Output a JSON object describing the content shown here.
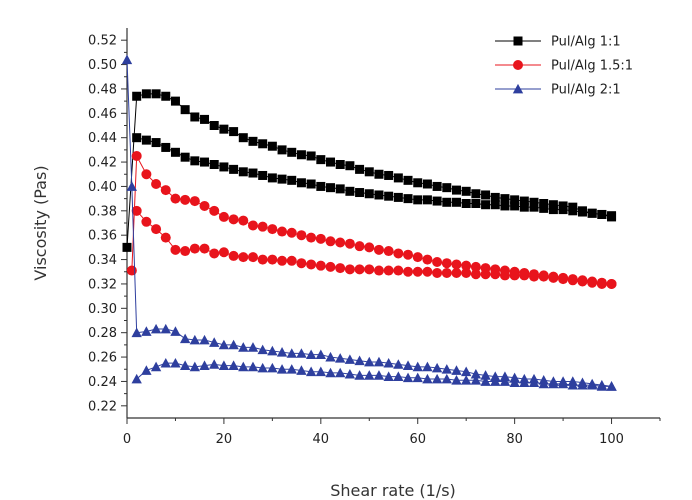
{
  "chart_data": {
    "type": "scatter",
    "title": "",
    "xlabel": "Shear rate (1/s)",
    "ylabel": "Viscosity (Pas)",
    "xlim": [
      0,
      110
    ],
    "ylim": [
      0.21,
      0.53
    ],
    "xticks": [
      0,
      20,
      40,
      60,
      80,
      100
    ],
    "yticks": [
      0.22,
      0.24,
      0.26,
      0.28,
      0.3,
      0.32,
      0.34,
      0.36,
      0.38,
      0.4,
      0.42,
      0.44,
      0.46,
      0.48,
      0.5,
      0.52
    ],
    "grid": false,
    "legend_position": "top-right",
    "series": [
      {
        "name": "Pul/Alg 1:1",
        "color": "#000000",
        "marker": "square",
        "up": {
          "x": [
            0,
            2,
            4,
            6,
            8,
            10,
            12,
            14,
            16,
            18,
            20,
            22,
            24,
            26,
            28,
            30,
            32,
            34,
            36,
            38,
            40,
            42,
            44,
            46,
            48,
            50,
            52,
            54,
            56,
            58,
            60,
            62,
            64,
            66,
            68,
            70,
            72,
            74,
            76,
            78,
            80,
            82,
            84,
            86,
            88,
            90,
            92,
            94,
            96,
            98,
            100
          ],
          "y": [
            0.35,
            0.474,
            0.476,
            0.476,
            0.474,
            0.47,
            0.463,
            0.457,
            0.455,
            0.45,
            0.447,
            0.445,
            0.44,
            0.437,
            0.435,
            0.433,
            0.43,
            0.428,
            0.426,
            0.425,
            0.422,
            0.42,
            0.418,
            0.417,
            0.414,
            0.412,
            0.41,
            0.409,
            0.407,
            0.405,
            0.403,
            0.402,
            0.4,
            0.399,
            0.397,
            0.396,
            0.394,
            0.393,
            0.391,
            0.39,
            0.389,
            0.388,
            0.387,
            0.386,
            0.385,
            0.384,
            0.383,
            0.38,
            0.378,
            0.377,
            0.375
          ]
        },
        "down": {
          "x": [
            2,
            4,
            6,
            8,
            10,
            12,
            14,
            16,
            18,
            20,
            22,
            24,
            26,
            28,
            30,
            32,
            34,
            36,
            38,
            40,
            42,
            44,
            46,
            48,
            50,
            52,
            54,
            56,
            58,
            60,
            62,
            64,
            66,
            68,
            70,
            72,
            74,
            76,
            78,
            80,
            82,
            84,
            86,
            88,
            90,
            92,
            94,
            96,
            98,
            100
          ],
          "y": [
            0.44,
            0.438,
            0.436,
            0.432,
            0.428,
            0.424,
            0.421,
            0.42,
            0.418,
            0.416,
            0.414,
            0.412,
            0.411,
            0.409,
            0.407,
            0.406,
            0.405,
            0.403,
            0.402,
            0.4,
            0.399,
            0.398,
            0.396,
            0.395,
            0.394,
            0.393,
            0.392,
            0.391,
            0.39,
            0.389,
            0.389,
            0.388,
            0.387,
            0.387,
            0.386,
            0.386,
            0.385,
            0.385,
            0.384,
            0.384,
            0.383,
            0.383,
            0.382,
            0.381,
            0.381,
            0.38,
            0.379,
            0.378,
            0.377,
            0.376
          ]
        }
      },
      {
        "name": "Pul/Alg 1.5:1",
        "color": "#e8141c",
        "marker": "circle",
        "up": {
          "x": [
            1,
            2,
            4,
            6,
            8,
            10,
            12,
            14,
            16,
            18,
            20,
            22,
            24,
            26,
            28,
            30,
            32,
            34,
            36,
            38,
            40,
            42,
            44,
            46,
            48,
            50,
            52,
            54,
            56,
            58,
            60,
            62,
            64,
            66,
            68,
            70,
            72,
            74,
            76,
            78,
            80,
            82,
            84,
            86,
            88,
            90,
            92,
            94,
            96,
            98,
            100
          ],
          "y": [
            0.331,
            0.425,
            0.41,
            0.402,
            0.397,
            0.39,
            0.389,
            0.388,
            0.384,
            0.38,
            0.375,
            0.373,
            0.372,
            0.368,
            0.367,
            0.365,
            0.363,
            0.362,
            0.36,
            0.358,
            0.357,
            0.355,
            0.354,
            0.353,
            0.351,
            0.35,
            0.348,
            0.347,
            0.345,
            0.344,
            0.342,
            0.34,
            0.338,
            0.337,
            0.336,
            0.335,
            0.334,
            0.333,
            0.332,
            0.331,
            0.33,
            0.329,
            0.328,
            0.327,
            0.326,
            0.325,
            0.324,
            0.323,
            0.322,
            0.321,
            0.32
          ]
        },
        "down": {
          "x": [
            2,
            4,
            6,
            8,
            10,
            12,
            14,
            16,
            18,
            20,
            22,
            24,
            26,
            28,
            30,
            32,
            34,
            36,
            38,
            40,
            42,
            44,
            46,
            48,
            50,
            52,
            54,
            56,
            58,
            60,
            62,
            64,
            66,
            68,
            70,
            72,
            74,
            76,
            78,
            80,
            82,
            84,
            86,
            88,
            90,
            92,
            94,
            96,
            98,
            100
          ],
          "y": [
            0.38,
            0.371,
            0.365,
            0.358,
            0.348,
            0.347,
            0.349,
            0.349,
            0.345,
            0.346,
            0.343,
            0.342,
            0.342,
            0.34,
            0.34,
            0.339,
            0.339,
            0.337,
            0.336,
            0.335,
            0.334,
            0.333,
            0.332,
            0.332,
            0.332,
            0.331,
            0.331,
            0.331,
            0.33,
            0.33,
            0.33,
            0.329,
            0.329,
            0.329,
            0.329,
            0.328,
            0.328,
            0.328,
            0.327,
            0.327,
            0.327,
            0.326,
            0.326,
            0.325,
            0.324,
            0.323,
            0.322,
            0.321,
            0.32,
            0.32
          ]
        }
      },
      {
        "name": "Pul/Alg 2:1",
        "color": "#2e3f9e",
        "marker": "triangle",
        "up": {
          "x": [
            0,
            1,
            2,
            4,
            6,
            8,
            10,
            12,
            14,
            16,
            18,
            20,
            22,
            24,
            26,
            28,
            30,
            32,
            34,
            36,
            38,
            40,
            42,
            44,
            46,
            48,
            50,
            52,
            54,
            56,
            58,
            60,
            62,
            64,
            66,
            68,
            70,
            72,
            74,
            76,
            78,
            80,
            82,
            84,
            86,
            88,
            90,
            92,
            94,
            96,
            98,
            100
          ],
          "y": [
            0.504,
            0.4,
            0.28,
            0.281,
            0.283,
            0.283,
            0.281,
            0.275,
            0.274,
            0.274,
            0.272,
            0.27,
            0.27,
            0.268,
            0.268,
            0.266,
            0.265,
            0.264,
            0.263,
            0.263,
            0.262,
            0.262,
            0.26,
            0.259,
            0.258,
            0.257,
            0.256,
            0.256,
            0.255,
            0.254,
            0.253,
            0.252,
            0.252,
            0.251,
            0.25,
            0.249,
            0.248,
            0.246,
            0.245,
            0.244,
            0.244,
            0.243,
            0.242,
            0.242,
            0.241,
            0.24,
            0.24,
            0.24,
            0.239,
            0.238,
            0.237,
            0.236
          ]
        },
        "down": {
          "x": [
            2,
            4,
            6,
            8,
            10,
            12,
            14,
            16,
            18,
            20,
            22,
            24,
            26,
            28,
            30,
            32,
            34,
            36,
            38,
            40,
            42,
            44,
            46,
            48,
            50,
            52,
            54,
            56,
            58,
            60,
            62,
            64,
            66,
            68,
            70,
            72,
            74,
            76,
            78,
            80,
            82,
            84,
            86,
            88,
            90,
            92,
            94,
            96,
            98,
            100
          ],
          "y": [
            0.242,
            0.249,
            0.252,
            0.255,
            0.255,
            0.253,
            0.252,
            0.253,
            0.254,
            0.253,
            0.253,
            0.252,
            0.252,
            0.251,
            0.251,
            0.25,
            0.25,
            0.249,
            0.248,
            0.248,
            0.247,
            0.247,
            0.246,
            0.245,
            0.245,
            0.245,
            0.244,
            0.244,
            0.243,
            0.243,
            0.242,
            0.242,
            0.242,
            0.241,
            0.241,
            0.241,
            0.24,
            0.24,
            0.24,
            0.239,
            0.239,
            0.239,
            0.238,
            0.238,
            0.238,
            0.237,
            0.237,
            0.237,
            0.236,
            0.236
          ]
        }
      }
    ]
  }
}
